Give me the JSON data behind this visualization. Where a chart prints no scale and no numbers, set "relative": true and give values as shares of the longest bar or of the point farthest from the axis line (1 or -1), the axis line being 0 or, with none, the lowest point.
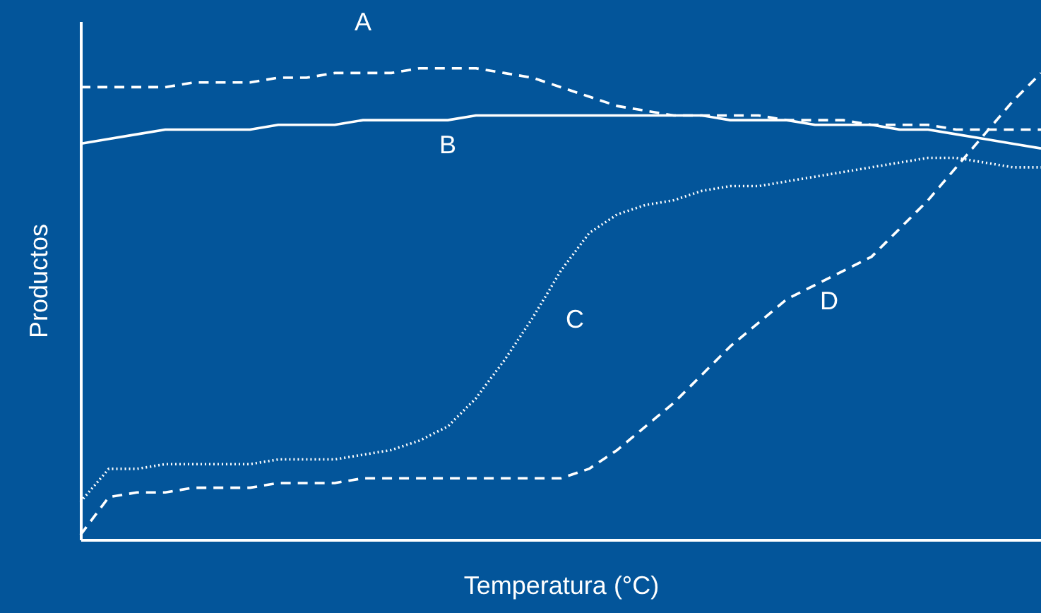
{
  "chart_data": {
    "type": "line",
    "relative": true,
    "xlabel": "Temperatura (°C)",
    "ylabel": "Productos",
    "grid": false,
    "tick_labels": false,
    "categories": [
      null,
      null,
      null,
      null,
      null,
      null,
      null,
      null,
      null,
      null,
      null,
      null,
      null,
      null,
      null,
      null,
      null,
      null,
      null,
      null,
      null,
      null,
      null,
      null,
      null,
      null,
      null,
      null,
      null,
      null,
      null,
      null,
      null,
      null,
      null
    ],
    "series": [
      {
        "name": "A",
        "color": "#ffffff",
        "line_style": "dashed",
        "values": [
          0.96,
          0.96,
          0.96,
          0.96,
          0.97,
          0.97,
          0.97,
          0.98,
          0.98,
          0.99,
          0.99,
          0.99,
          1,
          1,
          1,
          0.99,
          0.98,
          0.96,
          0.94,
          0.92,
          0.91,
          0.9,
          0.9,
          0.9,
          0.9,
          0.89,
          0.89,
          0.89,
          0.88,
          0.88,
          0.88,
          0.87,
          0.87,
          0.87,
          0.87
        ]
      },
      {
        "name": "B",
        "color": "#ffffff",
        "line_style": "solid",
        "values": [
          0.84,
          0.85,
          0.86,
          0.87,
          0.87,
          0.87,
          0.87,
          0.88,
          0.88,
          0.88,
          0.89,
          0.89,
          0.89,
          0.89,
          0.9,
          0.9,
          0.9,
          0.9,
          0.9,
          0.9,
          0.9,
          0.9,
          0.9,
          0.89,
          0.89,
          0.89,
          0.88,
          0.88,
          0.88,
          0.87,
          0.87,
          0.86,
          0.85,
          0.84,
          0.83
        ]
      },
      {
        "name": "C",
        "color": "#ffffff",
        "line_style": "dotted",
        "values": [
          0.08,
          0.15,
          0.15,
          0.16,
          0.16,
          0.16,
          0.16,
          0.17,
          0.17,
          0.17,
          0.18,
          0.19,
          0.21,
          0.24,
          0.3,
          0.38,
          0.47,
          0.57,
          0.65,
          0.69,
          0.71,
          0.72,
          0.74,
          0.75,
          0.75,
          0.76,
          0.77,
          0.78,
          0.79,
          0.8,
          0.81,
          0.81,
          0.8,
          0.79,
          0.79
        ]
      },
      {
        "name": "D",
        "color": "#ffffff",
        "line_style": "dashed",
        "values": [
          0.01,
          0.09,
          0.1,
          0.1,
          0.11,
          0.11,
          0.11,
          0.12,
          0.12,
          0.12,
          0.13,
          0.13,
          0.13,
          0.13,
          0.13,
          0.13,
          0.13,
          0.13,
          0.15,
          0.19,
          0.24,
          0.29,
          0.35,
          0.41,
          0.46,
          0.51,
          0.54,
          0.57,
          0.6,
          0.66,
          0.72,
          0.79,
          0.86,
          0.93,
          0.99
        ]
      }
    ]
  }
}
